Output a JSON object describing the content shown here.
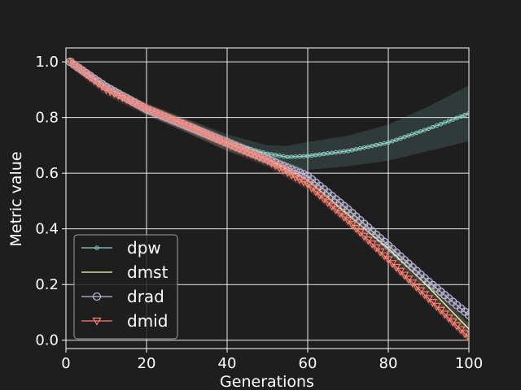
{
  "chart_data": {
    "type": "line",
    "title": "",
    "xlabel": "Generations",
    "ylabel": "Metric value",
    "xlim": [
      0,
      100
    ],
    "ylim": [
      -0.03,
      1.05
    ],
    "xticks": [
      0,
      20,
      40,
      60,
      80,
      100
    ],
    "yticks": [
      0.0,
      0.2,
      0.4,
      0.6,
      0.8,
      1.0
    ],
    "xtick_labels": [
      "0",
      "20",
      "40",
      "60",
      "80",
      "100"
    ],
    "ytick_labels": [
      "0.0",
      "0.2",
      "0.4",
      "0.6",
      "0.8",
      "1.0"
    ],
    "grid": true,
    "legend_position": "lower-left",
    "background": "#1e1e1e",
    "series": [
      {
        "name": "dpw",
        "color": "#8dd3c7",
        "marker": "small-circle",
        "points": [
          [
            1,
            1.0
          ],
          [
            10,
            0.91
          ],
          [
            20,
            0.83
          ],
          [
            30,
            0.77
          ],
          [
            40,
            0.71
          ],
          [
            50,
            0.67
          ],
          [
            55,
            0.658
          ],
          [
            60,
            0.662
          ],
          [
            70,
            0.68
          ],
          [
            80,
            0.71
          ],
          [
            90,
            0.76
          ],
          [
            100,
            0.815
          ]
        ],
        "band": [
          [
            1,
            0.015
          ],
          [
            20,
            0.02
          ],
          [
            40,
            0.03
          ],
          [
            50,
            0.03
          ],
          [
            55,
            0.04
          ],
          [
            60,
            0.05
          ],
          [
            70,
            0.055
          ],
          [
            80,
            0.065
          ],
          [
            90,
            0.08
          ],
          [
            100,
            0.1
          ]
        ]
      },
      {
        "name": "dmst",
        "color": "#ffffb3",
        "marker": "none",
        "points": [
          [
            1,
            1.0
          ],
          [
            10,
            0.91
          ],
          [
            20,
            0.83
          ],
          [
            30,
            0.77
          ],
          [
            40,
            0.71
          ],
          [
            50,
            0.65
          ],
          [
            60,
            0.575
          ],
          [
            70,
            0.45
          ],
          [
            80,
            0.33
          ],
          [
            90,
            0.19
          ],
          [
            100,
            0.04
          ]
        ],
        "band": [
          [
            1,
            0.015
          ],
          [
            50,
            0.02
          ],
          [
            100,
            0.02
          ]
        ]
      },
      {
        "name": "drad",
        "color": "#bebada",
        "marker": "circle",
        "points": [
          [
            1,
            1.0
          ],
          [
            10,
            0.91
          ],
          [
            20,
            0.83
          ],
          [
            30,
            0.77
          ],
          [
            40,
            0.71
          ],
          [
            50,
            0.65
          ],
          [
            60,
            0.59
          ],
          [
            70,
            0.47
          ],
          [
            80,
            0.34
          ],
          [
            90,
            0.21
          ],
          [
            100,
            0.09
          ]
        ],
        "band": [
          [
            1,
            0.015
          ],
          [
            50,
            0.02
          ],
          [
            100,
            0.02
          ]
        ]
      },
      {
        "name": "dmid",
        "color": "#fb8072",
        "marker": "triangle-down",
        "points": [
          [
            1,
            1.0
          ],
          [
            10,
            0.9
          ],
          [
            20,
            0.83
          ],
          [
            30,
            0.77
          ],
          [
            40,
            0.705
          ],
          [
            50,
            0.645
          ],
          [
            60,
            0.56
          ],
          [
            70,
            0.43
          ],
          [
            80,
            0.29
          ],
          [
            90,
            0.15
          ],
          [
            100,
            0.01
          ]
        ],
        "band": [
          [
            1,
            0.02
          ],
          [
            40,
            0.025
          ],
          [
            60,
            0.02
          ],
          [
            100,
            0.02
          ]
        ]
      }
    ]
  }
}
